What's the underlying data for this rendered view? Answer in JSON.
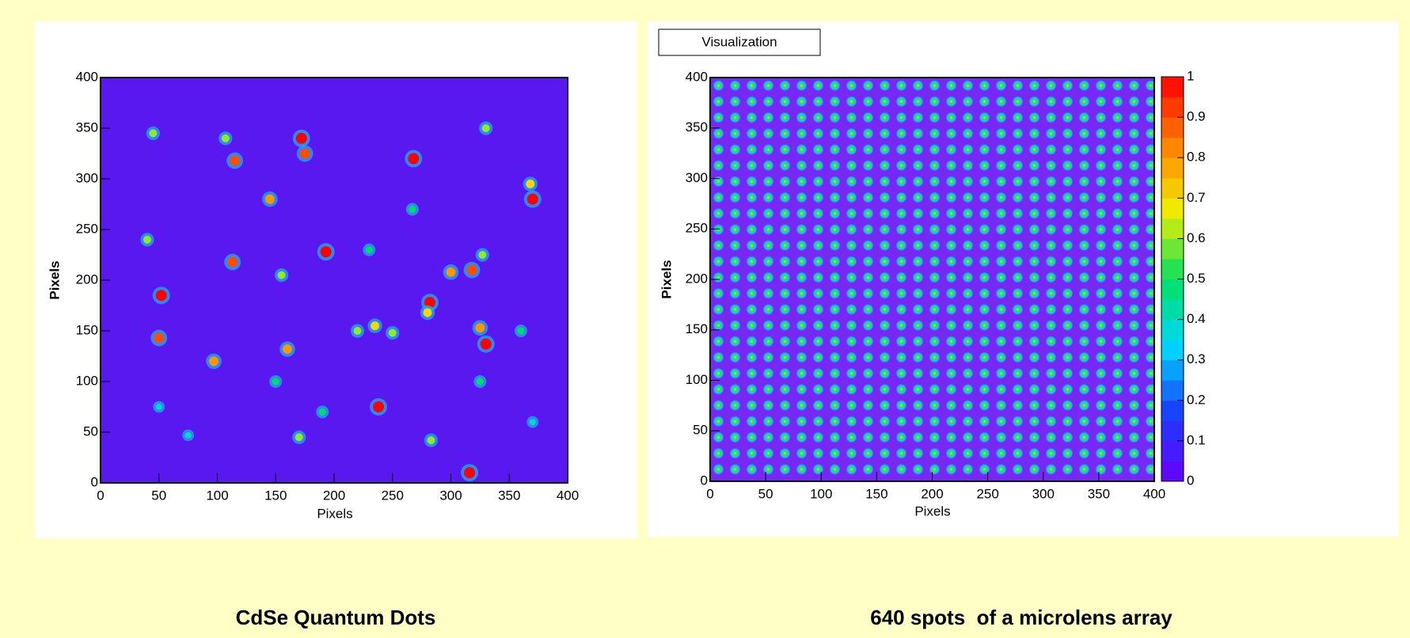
{
  "chart_data": [
    {
      "type": "heatmap",
      "xlabel": "Pixels",
      "ylabel": "Pixels",
      "caption": "CdSe Quantum Dots",
      "xlim": [
        0,
        400
      ],
      "ylim": [
        0,
        400
      ],
      "xticks": [
        0,
        50,
        100,
        150,
        200,
        250,
        300,
        350,
        400
      ],
      "yticks": [
        0,
        50,
        100,
        150,
        200,
        250,
        300,
        350,
        400
      ],
      "spots": {
        "x": [
          52,
          115,
          172,
          175,
          145,
          268,
          193,
          113,
          370,
          368,
          282,
          280,
          300,
          318,
          327,
          330,
          325,
          238,
          316,
          50,
          97,
          160,
          155,
          40,
          45,
          107,
          330,
          235,
          220,
          250,
          170,
          150,
          283,
          190,
          370,
          50,
          75,
          325,
          267,
          230,
          360
        ],
        "y": [
          185,
          318,
          340,
          325,
          280,
          320,
          228,
          218,
          280,
          295,
          178,
          168,
          208,
          210,
          225,
          137,
          153,
          75,
          10,
          143,
          120,
          132,
          205,
          240,
          345,
          340,
          350,
          155,
          150,
          148,
          45,
          100,
          42,
          70,
          60,
          75,
          47,
          100,
          270,
          230,
          150
        ],
        "z": [
          1,
          0.9,
          1,
          0.9,
          0.8,
          1,
          1,
          0.9,
          1,
          0.7,
          1,
          0.7,
          0.8,
          0.9,
          0.6,
          1,
          0.8,
          1,
          1,
          0.9,
          0.8,
          0.8,
          0.6,
          0.6,
          0.6,
          0.6,
          0.6,
          0.7,
          0.6,
          0.6,
          0.6,
          0.5,
          0.6,
          0.5,
          0.4,
          0.4,
          0.4,
          0.5,
          0.5,
          0.5,
          0.5
        ]
      }
    },
    {
      "type": "heatmap",
      "title": "Visualization",
      "xlabel": "Pixels",
      "ylabel": "Pixels",
      "caption": "640 spots  of a microlens array",
      "xlim": [
        0,
        400
      ],
      "ylim": [
        0,
        400
      ],
      "xticks": [
        0,
        50,
        100,
        150,
        200,
        250,
        300,
        350,
        400
      ],
      "yticks": [
        0,
        50,
        100,
        150,
        200,
        250,
        300,
        350,
        400
      ],
      "zlim": [
        0,
        1
      ],
      "zticks": [
        0,
        0.1,
        0.2,
        0.3,
        0.4,
        0.5,
        0.6,
        0.7,
        0.8,
        0.9,
        1
      ]
    }
  ]
}
